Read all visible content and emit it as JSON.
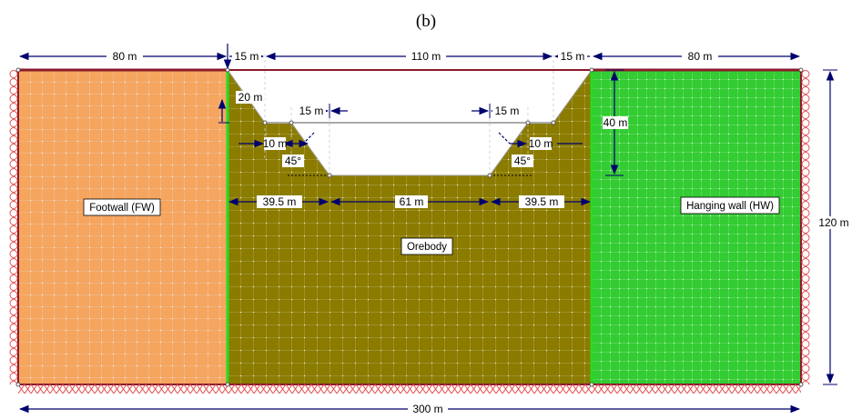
{
  "caption": "(b)",
  "regions": {
    "footwall": "Footwall (FW)",
    "orebody": "Orebody",
    "hanging_wall": "Hanging wall (HW)"
  },
  "dimensions": {
    "top_left_width": "80 m",
    "top_left_slope": "15 m",
    "top_middle": "110 m",
    "top_right_slope": "15 m",
    "top_right_width": "80 m",
    "left_bench_depth": "20 m",
    "left_bench_width": "15 m",
    "right_bench_width": "15 m",
    "left_bench_offset": "10 m",
    "right_bench_offset": "10 m",
    "left_slope_angle": "45°",
    "right_slope_angle": "45°",
    "right_depth": "40 m",
    "left_base": "39.5 m",
    "middle_base": "61 m",
    "right_base": "39.5 m",
    "total_height": "120 m",
    "total_width": "300 m"
  },
  "colors": {
    "footwall": "#F6A55E",
    "orebody": "#8B7C00",
    "hanging_wall": "#33CC33",
    "dimension": "#00006E",
    "boundary": "#8B1A2B",
    "support": "#E25050"
  }
}
